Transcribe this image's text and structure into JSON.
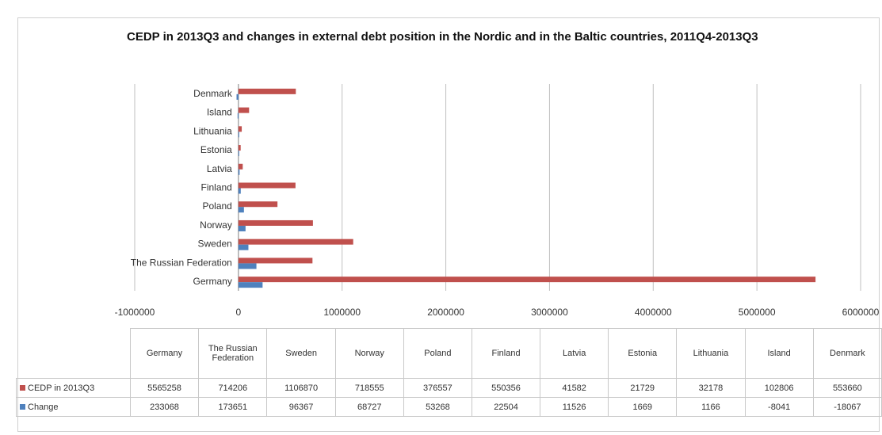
{
  "title": "CEDP in 2013Q3 and changes in external debt position in the Nordic and in the Baltic countries, 2011Q4-2013Q3",
  "colors": {
    "cedp": "#c0504d",
    "change": "#4f81bd",
    "grid": "#bfbfbf"
  },
  "chart_data": {
    "type": "bar",
    "orientation": "horizontal",
    "title": "CEDP in 2013Q3 and changes in external debt position in the Nordic and in the Baltic countries, 2011Q4-2013Q3",
    "categories": [
      "Germany",
      "The Russian Federation",
      "Sweden",
      "Norway",
      "Poland",
      "Finland",
      "Latvia",
      "Estonia",
      "Lithuania",
      "Island",
      "Denmark"
    ],
    "series": [
      {
        "name": "CEDP in 2013Q3",
        "color": "#c0504d",
        "values": [
          5565258,
          714206,
          1106870,
          718555,
          376557,
          550356,
          41582,
          21729,
          32178,
          102806,
          553660
        ]
      },
      {
        "name": "Change",
        "color": "#4f81bd",
        "values": [
          233068,
          173651,
          96367,
          68727,
          53268,
          22504,
          11526,
          1669,
          1166,
          -8041,
          -18067
        ]
      }
    ],
    "xlim": [
      -1000000,
      6000000
    ],
    "xticks": [
      "-1000000",
      "0",
      "1000000",
      "2000000",
      "3000000",
      "4000000",
      "5000000",
      "6000000"
    ],
    "xticks_values": [
      -1000000,
      0,
      1000000,
      2000000,
      3000000,
      4000000,
      5000000,
      6000000
    ],
    "grid": true,
    "legend": "data-table"
  },
  "table": {
    "columns": [
      "Germany",
      "The Russian Federation",
      "Sweden",
      "Norway",
      "Poland",
      "Finland",
      "Latvia",
      "Estonia",
      "Lithuania",
      "Island",
      "Denmark"
    ],
    "rows": [
      {
        "label": "CEDP in 2013Q3",
        "values": [
          "5565258",
          "714206",
          "1106870",
          "718555",
          "376557",
          "550356",
          "41582",
          "21729",
          "32178",
          "102806",
          "553660"
        ]
      },
      {
        "label": "Change",
        "values": [
          "233068",
          "173651",
          "96367",
          "68727",
          "53268",
          "22504",
          "11526",
          "1669",
          "1166",
          "-8041",
          "-18067"
        ]
      }
    ]
  }
}
